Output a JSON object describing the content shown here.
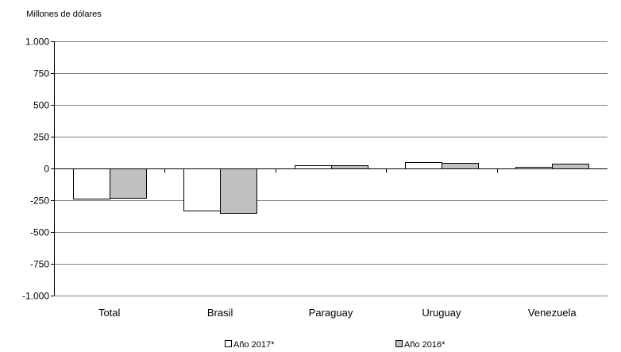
{
  "chart_data": {
    "type": "bar",
    "ylabel": "Millones de dólares",
    "categories": [
      "Total",
      "Brasil",
      "Paraguay",
      "Uruguay",
      "Venezuela"
    ],
    "series": [
      {
        "name": "Año 2017*",
        "color": "#ffffff",
        "values": [
          -240,
          -330,
          28,
          48,
          12
        ]
      },
      {
        "name": "Año 2016*",
        "color": "#bfbfbf",
        "values": [
          -233,
          -347,
          27,
          44,
          38
        ]
      }
    ],
    "ylim": [
      -1000,
      1000
    ],
    "yticks": [
      1000,
      750,
      500,
      250,
      0,
      -250,
      -500,
      -750,
      -1000
    ],
    "ytick_labels": [
      "1.000",
      "750",
      "500",
      "250",
      "0",
      "-250",
      "-500",
      "-750",
      "-1.000"
    ],
    "grid": true,
    "legend_position": "bottom-center"
  }
}
